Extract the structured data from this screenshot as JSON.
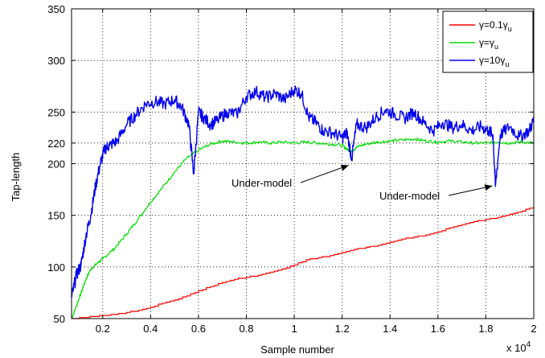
{
  "chart_data": {
    "type": "line",
    "xlabel": "Sample number",
    "ylabel": "Tap-length",
    "x_multiplier_label": "x 10",
    "x_multiplier_exponent": "4",
    "xlim": [
      0.07,
      2.0
    ],
    "ylim": [
      50,
      350
    ],
    "x_ticks": [
      0.2,
      0.4,
      0.6,
      0.8,
      1.0,
      1.2,
      1.4,
      1.6,
      1.8,
      2.0
    ],
    "x_tick_labels": [
      "0.2",
      "0.4",
      "0.6",
      "0.8",
      "1",
      "1.2",
      "1.4",
      "1.6",
      "1.8",
      "2"
    ],
    "y_ticks": [
      50,
      100,
      150,
      200,
      220,
      250,
      300,
      350
    ],
    "y_tick_labels": [
      "50",
      "100",
      "150",
      "200",
      "220",
      "250",
      "300",
      "350"
    ],
    "grid": true,
    "grid_style": "dotted",
    "legend_position": "top-right",
    "series": [
      {
        "name": "γ=0.1γu",
        "legend_main": "γ=0.1γ",
        "legend_sub": "u",
        "color": "#ff0000",
        "x": [
          0.07,
          0.12,
          0.16,
          0.2,
          0.25,
          0.3,
          0.35,
          0.4,
          0.45,
          0.5,
          0.55,
          0.6,
          0.65,
          0.7,
          0.75,
          0.8,
          0.85,
          0.9,
          0.95,
          1.0,
          1.05,
          1.1,
          1.15,
          1.2,
          1.25,
          1.3,
          1.35,
          1.4,
          1.45,
          1.5,
          1.55,
          1.6,
          1.65,
          1.7,
          1.75,
          1.8,
          1.85,
          1.9,
          1.95,
          2.0
        ],
        "y": [
          50,
          51,
          52,
          53,
          54,
          56,
          58,
          61,
          65,
          68,
          72,
          77,
          81,
          85,
          88,
          90,
          92,
          95,
          98,
          102,
          107,
          109,
          111,
          114,
          117,
          119,
          121,
          124,
          127,
          129,
          131,
          134,
          138,
          141,
          144,
          146,
          148,
          151,
          154,
          159
        ]
      },
      {
        "name": "γ=γu",
        "legend_main": "γ=γ",
        "legend_sub": "u",
        "color": "#00dd00",
        "x": [
          0.07,
          0.09,
          0.11,
          0.13,
          0.15,
          0.18,
          0.2,
          0.25,
          0.3,
          0.35,
          0.4,
          0.45,
          0.5,
          0.55,
          0.6,
          0.65,
          0.7,
          0.75,
          0.8,
          0.85,
          0.9,
          0.95,
          1.0,
          1.05,
          1.1,
          1.15,
          1.2,
          1.22,
          1.24,
          1.26,
          1.3,
          1.35,
          1.4,
          1.45,
          1.5,
          1.55,
          1.6,
          1.65,
          1.7,
          1.75,
          1.8,
          1.85,
          1.9,
          1.95,
          2.0
        ],
        "y": [
          50,
          62,
          75,
          88,
          98,
          104,
          108,
          118,
          132,
          147,
          163,
          177,
          192,
          205,
          213,
          219,
          222,
          221,
          220,
          221,
          220,
          221,
          220,
          221,
          220,
          219,
          218,
          214,
          212,
          216,
          219,
          221,
          222,
          223,
          224,
          222,
          221,
          222,
          221,
          220,
          220,
          221,
          220,
          221,
          220
        ]
      },
      {
        "name": "γ=10γu",
        "legend_main": "γ=10γ",
        "legend_sub": "u",
        "color": "#0000ee",
        "x": [
          0.07,
          0.09,
          0.11,
          0.13,
          0.15,
          0.17,
          0.19,
          0.21,
          0.23,
          0.26,
          0.3,
          0.34,
          0.38,
          0.42,
          0.46,
          0.5,
          0.53,
          0.56,
          0.58,
          0.6,
          0.62,
          0.65,
          0.68,
          0.72,
          0.76,
          0.8,
          0.84,
          0.88,
          0.92,
          0.96,
          1.0,
          1.03,
          1.06,
          1.09,
          1.12,
          1.16,
          1.2,
          1.22,
          1.24,
          1.26,
          1.3,
          1.34,
          1.38,
          1.42,
          1.46,
          1.5,
          1.54,
          1.58,
          1.62,
          1.66,
          1.7,
          1.74,
          1.78,
          1.81,
          1.83,
          1.84,
          1.86,
          1.9,
          1.94,
          1.98,
          2.0
        ],
        "y": [
          70,
          92,
          102,
          130,
          150,
          178,
          200,
          215,
          218,
          222,
          238,
          248,
          258,
          260,
          258,
          262,
          255,
          238,
          190,
          250,
          245,
          238,
          242,
          250,
          248,
          265,
          270,
          264,
          268,
          262,
          272,
          268,
          245,
          240,
          232,
          230,
          225,
          230,
          205,
          238,
          235,
          245,
          252,
          248,
          244,
          250,
          240,
          232,
          240,
          235,
          238,
          232,
          236,
          232,
          228,
          178,
          228,
          236,
          226,
          232,
          242
        ]
      }
    ],
    "annotations": [
      {
        "text": "Under-model",
        "target_x": 1.24,
        "target_y": 200
      },
      {
        "text": "Under-model",
        "target_x": 1.84,
        "target_y": 180
      }
    ]
  }
}
